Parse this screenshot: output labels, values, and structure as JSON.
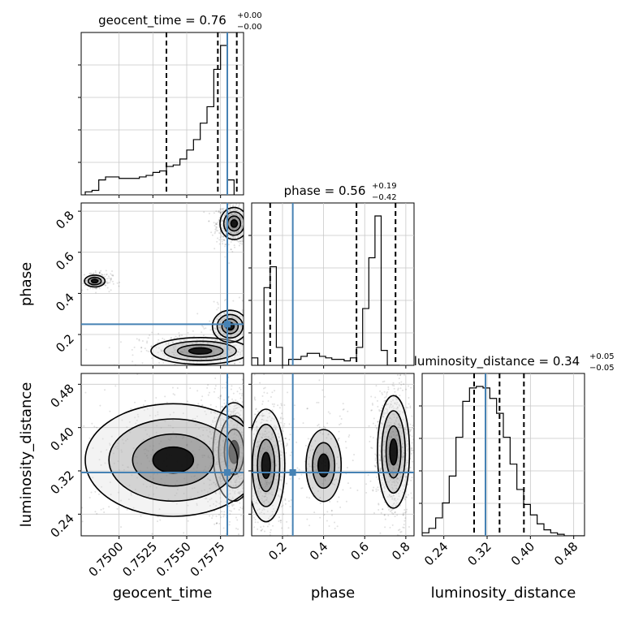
{
  "chart_data": {
    "type": "corner",
    "parameters": [
      {
        "name": "geocent_time",
        "range": [
          0.7472,
          0.7592
        ],
        "median": "0.76",
        "err_plus": "+0.00",
        "err_minus": "−0.00",
        "quantiles": [
          0.7535,
          0.7573,
          0.7587
        ],
        "truth": 0.758,
        "ticks": [
          "0.7500",
          "0.7525",
          "0.7550",
          "0.7575"
        ],
        "tick_values": [
          0.75,
          0.7525,
          0.755,
          0.7575
        ]
      },
      {
        "name": "phase",
        "range": [
          0.05,
          0.84
        ],
        "median": "0.56",
        "err_plus": "+0.19",
        "err_minus": "−0.42",
        "quantiles": [
          0.14,
          0.56,
          0.75
        ],
        "truth": 0.25,
        "ticks": [
          "0.2",
          "0.4",
          "0.6",
          "0.8"
        ],
        "tick_values": [
          0.2,
          0.4,
          0.6,
          0.8
        ]
      },
      {
        "name": "luminosity_distance",
        "range": [
          0.2,
          0.5
        ],
        "median": "0.34",
        "err_plus": "+0.05",
        "err_minus": "−0.05",
        "quantiles": [
          0.296,
          0.343,
          0.388
        ],
        "truth": 0.317,
        "ticks": [
          "0.24",
          "0.32",
          "0.40",
          "0.48"
        ],
        "tick_values": [
          0.24,
          0.32,
          0.4,
          0.48
        ]
      }
    ],
    "hist1d": [
      {
        "param": "geocent_time",
        "edges_start": 0.7475,
        "bin_width": 0.0005,
        "values": [
          0.02,
          0.03,
          0.1,
          0.12,
          0.12,
          0.11,
          0.11,
          0.11,
          0.12,
          0.13,
          0.15,
          0.16,
          0.19,
          0.2,
          0.24,
          0.3,
          0.37,
          0.48,
          0.59,
          0.84,
          1.0,
          0.1
        ],
        "yticks": [
          0.2,
          0.4,
          0.6,
          0.8
        ]
      },
      {
        "param": "phase",
        "edges_start": 0.05,
        "bin_width": 0.03,
        "values": [
          0.05,
          0.0,
          0.52,
          0.66,
          0.12,
          0.0,
          0.04,
          0.04,
          0.06,
          0.08,
          0.08,
          0.06,
          0.05,
          0.04,
          0.04,
          0.03,
          0.05,
          0.12,
          0.38,
          0.72,
          1.0,
          0.1,
          0.0,
          0.0
        ],
        "yticks": [
          0.2,
          0.4,
          0.6,
          0.8
        ]
      },
      {
        "param": "luminosity_distance",
        "edges_start": 0.2,
        "bin_width": 0.0125,
        "values": [
          0.02,
          0.05,
          0.12,
          0.22,
          0.4,
          0.66,
          0.9,
          0.99,
          1.0,
          0.99,
          0.92,
          0.82,
          0.66,
          0.48,
          0.31,
          0.21,
          0.14,
          0.08,
          0.04,
          0.02,
          0.01,
          0.0,
          0.0,
          0.0
        ],
        "yticks": [
          0.2,
          0.4,
          0.6,
          0.8
        ]
      }
    ],
    "hist2d": [
      {
        "x": "geocent_time",
        "y": "phase",
        "blobs": [
          {
            "x": 0.7585,
            "y": 0.74,
            "sx": 0.0004,
            "sy": 0.03,
            "w": 1.0
          },
          {
            "x": 0.756,
            "y": 0.12,
            "sx": 0.0014,
            "sy": 0.025,
            "w": 0.6
          },
          {
            "x": 0.7582,
            "y": 0.24,
            "sx": 0.0005,
            "sy": 0.03,
            "w": 0.4
          },
          {
            "x": 0.7482,
            "y": 0.46,
            "sx": 0.0004,
            "sy": 0.015,
            "w": 0.25
          }
        ]
      },
      {
        "x": "geocent_time",
        "y": "luminosity_distance",
        "blobs": [
          {
            "x": 0.7585,
            "y": 0.355,
            "sx": 0.0006,
            "sy": 0.035,
            "w": 1.0
          },
          {
            "x": 0.754,
            "y": 0.34,
            "sx": 0.0025,
            "sy": 0.04,
            "w": 0.35
          }
        ]
      },
      {
        "x": "phase",
        "y": "luminosity_distance",
        "blobs": [
          {
            "x": 0.74,
            "y": 0.355,
            "sx": 0.03,
            "sy": 0.04,
            "w": 1.0
          },
          {
            "x": 0.12,
            "y": 0.33,
            "sx": 0.035,
            "sy": 0.04,
            "w": 0.75
          },
          {
            "x": 0.4,
            "y": 0.33,
            "sx": 0.045,
            "sy": 0.035,
            "w": 0.2
          }
        ]
      }
    ],
    "grid": true,
    "colors": {
      "truth": "#4682b4",
      "hist": "#000000",
      "quantile": "#000000",
      "density": "#000000"
    }
  }
}
